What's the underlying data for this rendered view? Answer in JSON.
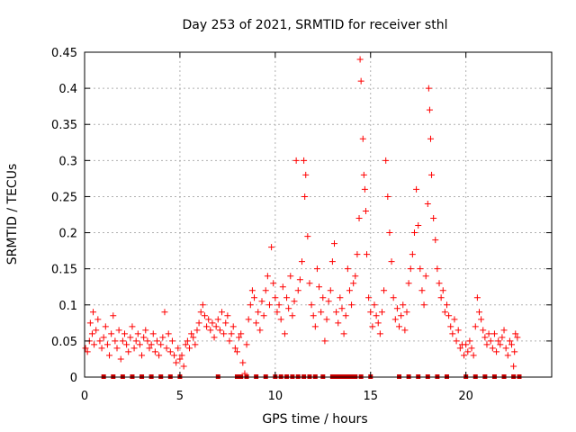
{
  "chart_data": {
    "type": "scatter",
    "title": "Day 253 of 2021, SRMTID for receiver sthl",
    "xlabel": "GPS time / hours",
    "ylabel": "SRMTID / TECUs",
    "xlim": [
      0,
      24.5
    ],
    "ylim": [
      0,
      0.45
    ],
    "x_ticks": [
      0,
      5,
      10,
      15,
      20
    ],
    "x_tick_labels": [
      "0",
      "5",
      "10",
      "15",
      "20"
    ],
    "y_ticks": [
      0,
      0.05,
      0.1,
      0.15,
      0.2,
      0.25,
      0.3,
      0.35,
      0.4,
      0.45
    ],
    "y_tick_labels": [
      "0",
      "0.05",
      "0.1",
      "0.15",
      "0.2",
      "0.25",
      "0.3",
      "0.35",
      "0.4",
      "0.45"
    ],
    "grid": true,
    "marker": "plus",
    "color": "#ff0000",
    "series": [
      {
        "name": "SRMTID",
        "points": [
          [
            0.05,
            0.04
          ],
          [
            0.15,
            0.035
          ],
          [
            0.25,
            0.05
          ],
          [
            0.3,
            0.075
          ],
          [
            0.4,
            0.06
          ],
          [
            0.45,
            0.09
          ],
          [
            0.5,
            0.045
          ],
          [
            0.6,
            0.065
          ],
          [
            0.7,
            0.08
          ],
          [
            0.8,
            0.05
          ],
          [
            0.9,
            0.04
          ],
          [
            1.0,
            0.055
          ],
          [
            1.1,
            0.07
          ],
          [
            1.2,
            0.045
          ],
          [
            1.3,
            0.03
          ],
          [
            1.4,
            0.06
          ],
          [
            1.5,
            0.085
          ],
          [
            1.6,
            0.05
          ],
          [
            1.7,
            0.04
          ],
          [
            1.8,
            0.065
          ],
          [
            1.9,
            0.025
          ],
          [
            2.0,
            0.05
          ],
          [
            2.1,
            0.06
          ],
          [
            2.2,
            0.045
          ],
          [
            2.3,
            0.035
          ],
          [
            2.4,
            0.055
          ],
          [
            2.5,
            0.07
          ],
          [
            2.6,
            0.04
          ],
          [
            2.7,
            0.05
          ],
          [
            2.8,
            0.06
          ],
          [
            2.9,
            0.045
          ],
          [
            3.0,
            0.03
          ],
          [
            3.1,
            0.055
          ],
          [
            3.2,
            0.065
          ],
          [
            3.3,
            0.05
          ],
          [
            3.4,
            0.04
          ],
          [
            3.5,
            0.045
          ],
          [
            3.6,
            0.06
          ],
          [
            3.7,
            0.035
          ],
          [
            3.8,
            0.05
          ],
          [
            3.9,
            0.03
          ],
          [
            4.0,
            0.045
          ],
          [
            4.1,
            0.055
          ],
          [
            4.2,
            0.09
          ],
          [
            4.3,
            0.04
          ],
          [
            4.4,
            0.06
          ],
          [
            4.5,
            0.035
          ],
          [
            4.6,
            0.05
          ],
          [
            4.7,
            0.03
          ],
          [
            4.8,
            0.02
          ],
          [
            4.9,
            0.04
          ],
          [
            5.0,
            0.025
          ],
          [
            5.1,
            0.03
          ],
          [
            5.2,
            0.015
          ],
          [
            5.3,
            0.045
          ],
          [
            5.4,
            0.05
          ],
          [
            5.5,
            0.04
          ],
          [
            5.6,
            0.06
          ],
          [
            5.7,
            0.055
          ],
          [
            5.8,
            0.045
          ],
          [
            5.9,
            0.065
          ],
          [
            6.0,
            0.075
          ],
          [
            6.1,
            0.09
          ],
          [
            6.2,
            0.1
          ],
          [
            6.3,
            0.085
          ],
          [
            6.4,
            0.07
          ],
          [
            6.5,
            0.08
          ],
          [
            6.6,
            0.065
          ],
          [
            6.7,
            0.075
          ],
          [
            6.8,
            0.055
          ],
          [
            6.9,
            0.07
          ],
          [
            7.0,
            0.08
          ],
          [
            7.1,
            0.065
          ],
          [
            7.2,
            0.09
          ],
          [
            7.3,
            0.06
          ],
          [
            7.4,
            0.075
          ],
          [
            7.5,
            0.085
          ],
          [
            7.6,
            0.05
          ],
          [
            7.7,
            0.06
          ],
          [
            7.8,
            0.07
          ],
          [
            7.9,
            0.04
          ],
          [
            8.0,
            0.035
          ],
          [
            8.1,
            0.055
          ],
          [
            8.2,
            0.06
          ],
          [
            8.3,
            0.02
          ],
          [
            8.4,
            0.005
          ],
          [
            8.5,
            0.045
          ],
          [
            8.6,
            0.08
          ],
          [
            8.7,
            0.1
          ],
          [
            8.8,
            0.12
          ],
          [
            8.9,
            0.11
          ],
          [
            9.0,
            0.075
          ],
          [
            9.1,
            0.09
          ],
          [
            9.2,
            0.065
          ],
          [
            9.3,
            0.105
          ],
          [
            9.4,
            0.085
          ],
          [
            9.5,
            0.12
          ],
          [
            9.6,
            0.14
          ],
          [
            9.7,
            0.1
          ],
          [
            9.8,
            0.18
          ],
          [
            9.9,
            0.13
          ],
          [
            10.0,
            0.11
          ],
          [
            10.1,
            0.09
          ],
          [
            10.2,
            0.1
          ],
          [
            10.3,
            0.08
          ],
          [
            10.4,
            0.125
          ],
          [
            10.5,
            0.06
          ],
          [
            10.6,
            0.11
          ],
          [
            10.7,
            0.095
          ],
          [
            10.8,
            0.14
          ],
          [
            10.9,
            0.085
          ],
          [
            11.0,
            0.105
          ],
          [
            11.1,
            0.3
          ],
          [
            11.2,
            0.12
          ],
          [
            11.3,
            0.135
          ],
          [
            11.4,
            0.16
          ],
          [
            11.5,
            0.3
          ],
          [
            11.55,
            0.25
          ],
          [
            11.6,
            0.28
          ],
          [
            11.7,
            0.195
          ],
          [
            11.8,
            0.13
          ],
          [
            11.9,
            0.1
          ],
          [
            12.0,
            0.085
          ],
          [
            12.1,
            0.07
          ],
          [
            12.2,
            0.15
          ],
          [
            12.3,
            0.125
          ],
          [
            12.4,
            0.09
          ],
          [
            12.5,
            0.11
          ],
          [
            12.6,
            0.05
          ],
          [
            12.7,
            0.08
          ],
          [
            12.8,
            0.105
          ],
          [
            12.9,
            0.12
          ],
          [
            13.0,
            0.16
          ],
          [
            13.1,
            0.185
          ],
          [
            13.2,
            0.09
          ],
          [
            13.3,
            0.075
          ],
          [
            13.4,
            0.11
          ],
          [
            13.5,
            0.095
          ],
          [
            13.6,
            0.06
          ],
          [
            13.7,
            0.085
          ],
          [
            13.8,
            0.15
          ],
          [
            13.9,
            0.12
          ],
          [
            14.0,
            0.1
          ],
          [
            14.1,
            0.13
          ],
          [
            14.2,
            0.14
          ],
          [
            14.3,
            0.17
          ],
          [
            14.4,
            0.22
          ],
          [
            14.45,
            0.44
          ],
          [
            14.5,
            0.41
          ],
          [
            14.6,
            0.33
          ],
          [
            14.65,
            0.28
          ],
          [
            14.7,
            0.26
          ],
          [
            14.75,
            0.23
          ],
          [
            14.8,
            0.17
          ],
          [
            14.9,
            0.11
          ],
          [
            15.0,
            0.09
          ],
          [
            15.1,
            0.07
          ],
          [
            15.2,
            0.1
          ],
          [
            15.3,
            0.085
          ],
          [
            15.4,
            0.075
          ],
          [
            15.5,
            0.06
          ],
          [
            15.6,
            0.09
          ],
          [
            15.7,
            0.12
          ],
          [
            15.8,
            0.3
          ],
          [
            15.9,
            0.25
          ],
          [
            16.0,
            0.2
          ],
          [
            16.1,
            0.16
          ],
          [
            16.2,
            0.11
          ],
          [
            16.3,
            0.08
          ],
          [
            16.4,
            0.095
          ],
          [
            16.5,
            0.07
          ],
          [
            16.6,
            0.085
          ],
          [
            16.7,
            0.1
          ],
          [
            16.8,
            0.065
          ],
          [
            16.9,
            0.09
          ],
          [
            17.0,
            0.13
          ],
          [
            17.1,
            0.15
          ],
          [
            17.2,
            0.17
          ],
          [
            17.3,
            0.2
          ],
          [
            17.4,
            0.26
          ],
          [
            17.5,
            0.21
          ],
          [
            17.6,
            0.15
          ],
          [
            17.7,
            0.12
          ],
          [
            17.8,
            0.1
          ],
          [
            17.9,
            0.14
          ],
          [
            18.0,
            0.24
          ],
          [
            18.05,
            0.4
          ],
          [
            18.1,
            0.37
          ],
          [
            18.15,
            0.33
          ],
          [
            18.2,
            0.28
          ],
          [
            18.3,
            0.22
          ],
          [
            18.4,
            0.19
          ],
          [
            18.5,
            0.15
          ],
          [
            18.6,
            0.13
          ],
          [
            18.7,
            0.11
          ],
          [
            18.8,
            0.12
          ],
          [
            18.9,
            0.09
          ],
          [
            19.0,
            0.1
          ],
          [
            19.1,
            0.085
          ],
          [
            19.2,
            0.07
          ],
          [
            19.3,
            0.06
          ],
          [
            19.4,
            0.08
          ],
          [
            19.5,
            0.05
          ],
          [
            19.6,
            0.065
          ],
          [
            19.7,
            0.04
          ],
          [
            19.8,
            0.045
          ],
          [
            19.9,
            0.03
          ],
          [
            20.0,
            0.045
          ],
          [
            20.1,
            0.035
          ],
          [
            20.2,
            0.05
          ],
          [
            20.3,
            0.04
          ],
          [
            20.4,
            0.03
          ],
          [
            20.5,
            0.07
          ],
          [
            20.6,
            0.11
          ],
          [
            20.7,
            0.09
          ],
          [
            20.8,
            0.08
          ],
          [
            20.9,
            0.065
          ],
          [
            21.0,
            0.055
          ],
          [
            21.1,
            0.045
          ],
          [
            21.2,
            0.06
          ],
          [
            21.3,
            0.05
          ],
          [
            21.4,
            0.04
          ],
          [
            21.5,
            0.06
          ],
          [
            21.6,
            0.035
          ],
          [
            21.7,
            0.05
          ],
          [
            21.8,
            0.045
          ],
          [
            21.9,
            0.055
          ],
          [
            22.0,
            0.065
          ],
          [
            22.1,
            0.04
          ],
          [
            22.2,
            0.03
          ],
          [
            22.3,
            0.05
          ],
          [
            22.4,
            0.045
          ],
          [
            22.5,
            0.015
          ],
          [
            22.55,
            0.035
          ],
          [
            22.6,
            0.06
          ],
          [
            22.7,
            0.055
          ]
        ],
        "zero_points_x": [
          1.0,
          1.5,
          2.0,
          2.5,
          3.0,
          3.5,
          4.0,
          4.5,
          5.0,
          7.0,
          8.0,
          8.2,
          8.5,
          9.0,
          9.5,
          10.0,
          10.3,
          10.6,
          10.9,
          11.2,
          11.5,
          11.8,
          12.1,
          12.5,
          13.0,
          13.2,
          13.4,
          13.6,
          13.8,
          14.0,
          14.2,
          14.5,
          15.0,
          16.5,
          17.0,
          17.5,
          18.0,
          18.5,
          19.0,
          20.0,
          20.5,
          21.0,
          21.5,
          22.0,
          22.5,
          22.8
        ]
      }
    ]
  }
}
